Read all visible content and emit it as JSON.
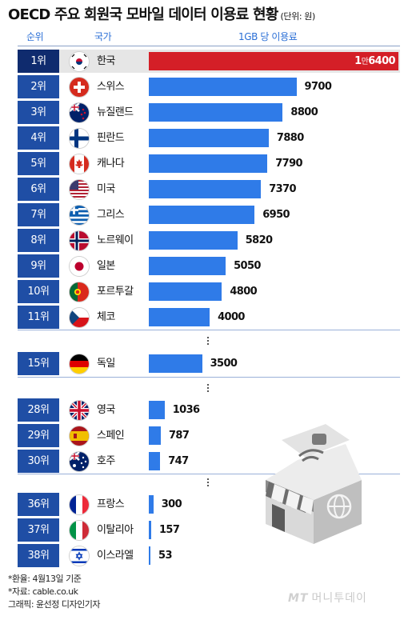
{
  "header": {
    "title": "OECD 주요 회원국 모바일 데이터 이용료 현황",
    "unit": "(단위: 원)",
    "col_rank": "순위",
    "col_country": "국가",
    "col_price": "1GB 당 이용료"
  },
  "chart_data": {
    "type": "bar",
    "title": "OECD 주요 회원국 모바일 데이터 이용료 현황",
    "unit": "원",
    "value_label": "1GB 당 이용료",
    "rows": [
      {
        "rank": "1위",
        "country": "한국",
        "value": 16400,
        "label_a": "1",
        "label_man": "만",
        "label_b": "6400",
        "highlight": true,
        "color": "#d41f27",
        "flag": "south-korea"
      },
      {
        "rank": "2위",
        "country": "스위스",
        "value": 9700,
        "label": "9700",
        "color": "#2f7be8",
        "flag": "switzerland"
      },
      {
        "rank": "3위",
        "country": "뉴질랜드",
        "value": 8800,
        "label": "8800",
        "color": "#2f7be8",
        "flag": "new-zealand"
      },
      {
        "rank": "4위",
        "country": "핀란드",
        "value": 7880,
        "label": "7880",
        "color": "#2f7be8",
        "flag": "finland"
      },
      {
        "rank": "5위",
        "country": "캐나다",
        "value": 7790,
        "label": "7790",
        "color": "#2f7be8",
        "flag": "canada"
      },
      {
        "rank": "6위",
        "country": "미국",
        "value": 7370,
        "label": "7370",
        "color": "#2f7be8",
        "flag": "usa"
      },
      {
        "rank": "7위",
        "country": "그리스",
        "value": 6950,
        "label": "6950",
        "color": "#2f7be8",
        "flag": "greece"
      },
      {
        "rank": "8위",
        "country": "노르웨이",
        "value": 5820,
        "label": "5820",
        "color": "#2f7be8",
        "flag": "norway"
      },
      {
        "rank": "9위",
        "country": "일본",
        "value": 5050,
        "label": "5050",
        "color": "#2f7be8",
        "flag": "japan"
      },
      {
        "rank": "10위",
        "country": "포르투갈",
        "value": 4800,
        "label": "4800",
        "color": "#2f7be8",
        "flag": "portugal"
      },
      {
        "rank": "11위",
        "country": "체코",
        "value": 4000,
        "label": "4000",
        "color": "#2f7be8",
        "flag": "czechia"
      },
      {
        "rank": "15위",
        "country": "독일",
        "value": 3500,
        "label": "3500",
        "color": "#2f7be8",
        "flag": "germany"
      },
      {
        "rank": "28위",
        "country": "영국",
        "value": 1036,
        "label": "1036",
        "color": "#2f7be8",
        "flag": "united-kingdom"
      },
      {
        "rank": "29위",
        "country": "스페인",
        "value": 787,
        "label": "787",
        "color": "#2f7be8",
        "flag": "spain"
      },
      {
        "rank": "30위",
        "country": "호주",
        "value": 747,
        "label": "747",
        "color": "#2f7be8",
        "flag": "australia"
      },
      {
        "rank": "36위",
        "country": "프랑스",
        "value": 300,
        "label": "300",
        "color": "#2f7be8",
        "flag": "france"
      },
      {
        "rank": "37위",
        "country": "이탈리아",
        "value": 157,
        "label": "157",
        "color": "#2f7be8",
        "flag": "italy"
      },
      {
        "rank": "38위",
        "country": "이스라엘",
        "value": 53,
        "label": "53",
        "color": "#2f7be8",
        "flag": "israel"
      }
    ]
  },
  "notes": {
    "line1": "*환율: 4월13일 기준",
    "line2": "*자료: cable.co.uk",
    "line3": "그래픽: 윤선정 디자인기자"
  },
  "brand": {
    "mt": "MT",
    "name": "머니투데이"
  }
}
